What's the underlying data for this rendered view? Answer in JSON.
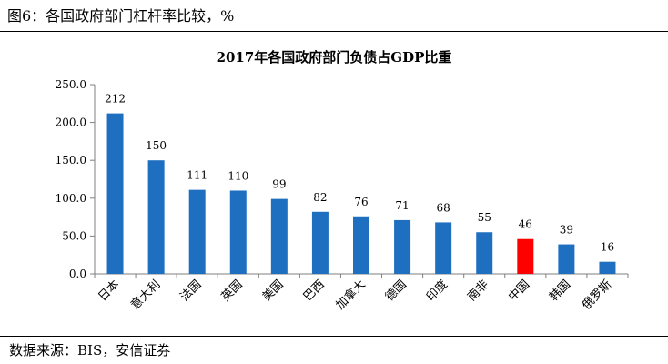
{
  "figure": {
    "caption": "图6：各国政府部门杠杆率比较，%",
    "source": "数据来源：BIS，安信证券"
  },
  "colors": {
    "bar": "#1f6fc1",
    "highlight": "#ff0000",
    "axis": "#7f7f7f"
  },
  "chart_data": {
    "type": "bar",
    "title": "2017年各国政府部门负债占GDP比重",
    "xlabel": "",
    "ylabel": "",
    "ylim": [
      0,
      250
    ],
    "yticks": [
      "0.0",
      "50.0",
      "100.0",
      "150.0",
      "200.0",
      "250.0"
    ],
    "grid": false,
    "legend": "none",
    "categories": [
      "日本",
      "意大利",
      "法国",
      "英国",
      "美国",
      "巴西",
      "加拿大",
      "德国",
      "印度",
      "南非",
      "中国",
      "韩国",
      "俄罗斯"
    ],
    "values": [
      212,
      150,
      111,
      110,
      99,
      82,
      76,
      71,
      68,
      55,
      46,
      39,
      16
    ],
    "highlight_category": "中国"
  }
}
